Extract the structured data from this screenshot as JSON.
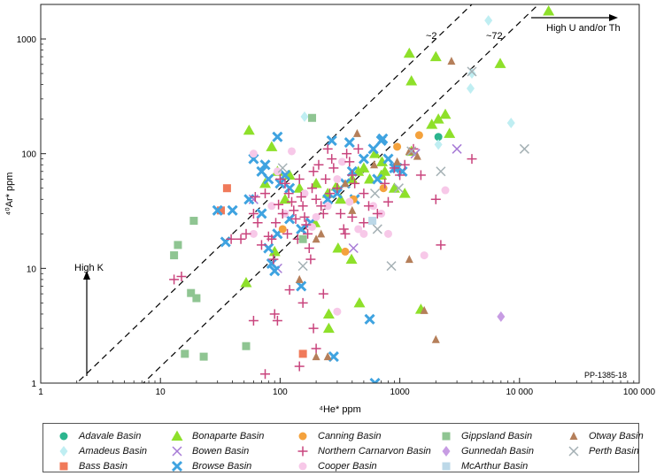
{
  "chart_data": {
    "type": "scatter",
    "x_scale": "log",
    "y_scale": "log",
    "xlim": [
      1,
      100000
    ],
    "ylim": [
      1,
      2000
    ],
    "xlabel": "⁴He* ppm",
    "ylabel": "⁴⁰Ar* ppm",
    "x_ticks": [
      {
        "value": 1,
        "label": "1"
      },
      {
        "value": 10,
        "label": "10"
      },
      {
        "value": 100,
        "label": "100"
      },
      {
        "value": 1000,
        "label": "1000"
      },
      {
        "value": 10000,
        "label": "10 000"
      },
      {
        "value": 100000,
        "label": "100 000"
      }
    ],
    "y_ticks": [
      {
        "value": 1,
        "label": "1"
      },
      {
        "value": 10,
        "label": "10"
      },
      {
        "value": 100,
        "label": "100"
      },
      {
        "value": 1000,
        "label": "1000"
      }
    ],
    "reference_lines": [
      {
        "label": "~2",
        "ratio": 0.5
      },
      {
        "label": "~72",
        "ratio": 0.139
      }
    ],
    "annotations": {
      "high_k": "High K",
      "high_u_th": "High U and/or Th",
      "figure_id": "PP-1385-18"
    },
    "legend_position": "bottom",
    "series": [
      {
        "name": "Adavale Basin",
        "marker": "circle",
        "color": "#2bb58e",
        "points": [
          [
            2100,
            140
          ]
        ]
      },
      {
        "name": "Amadeus Basin",
        "marker": "diamond",
        "color": "#bfeef2",
        "points": [
          [
            5500,
            1450
          ],
          [
            3900,
            370
          ],
          [
            8500,
            185
          ],
          [
            2100,
            120
          ],
          [
            160,
            210
          ],
          [
            4000,
            500
          ]
        ]
      },
      {
        "name": "Bass Basin",
        "marker": "square",
        "color": "#f07a5a",
        "points": [
          [
            36,
            50
          ],
          [
            32,
            32
          ],
          [
            155,
            1.8
          ]
        ]
      },
      {
        "name": "Bonaparte Basin",
        "marker": "triangle",
        "color": "#8ee02a",
        "points": [
          [
            17500,
            1750
          ],
          [
            1200,
            750
          ],
          [
            2000,
            700
          ],
          [
            6900,
            610
          ],
          [
            1250,
            430
          ],
          [
            2400,
            220
          ],
          [
            2100,
            200
          ],
          [
            1850,
            180
          ],
          [
            2600,
            150
          ],
          [
            55,
            160
          ],
          [
            85,
            115
          ],
          [
            95,
            70
          ],
          [
            120,
            65
          ],
          [
            145,
            50
          ],
          [
            200,
            55
          ],
          [
            250,
            45
          ],
          [
            295,
            52
          ],
          [
            320,
            40
          ],
          [
            400,
            60
          ],
          [
            450,
            70
          ],
          [
            500,
            75
          ],
          [
            560,
            60
          ],
          [
            620,
            100
          ],
          [
            710,
            85
          ],
          [
            750,
            70
          ],
          [
            900,
            50
          ],
          [
            1100,
            45
          ],
          [
            1250,
            105
          ],
          [
            75,
            55
          ],
          [
            110,
            40
          ],
          [
            195,
            25
          ],
          [
            305,
            15
          ],
          [
            395,
            12
          ],
          [
            460,
            5
          ],
          [
            255,
            4
          ],
          [
            255,
            3
          ],
          [
            52,
            7.5
          ],
          [
            90,
            14
          ],
          [
            1500,
            4.4
          ],
          [
            700,
            65
          ]
        ]
      },
      {
        "name": "Bowen Basin",
        "marker": "x",
        "color": "#a77bd6",
        "points": [
          [
            3000,
            110
          ],
          [
            1350,
            100
          ],
          [
            410,
            15
          ],
          [
            95,
            10
          ],
          [
            60,
            40
          ]
        ]
      },
      {
        "name": "Browse Basin",
        "marker": "asterisk",
        "color": "#3fa3e0",
        "points": [
          [
            95,
            140
          ],
          [
            60,
            90
          ],
          [
            75,
            80
          ],
          [
            70,
            70
          ],
          [
            80,
            60
          ],
          [
            100,
            55
          ],
          [
            110,
            65
          ],
          [
            120,
            50
          ],
          [
            30,
            32
          ],
          [
            40,
            32
          ],
          [
            55,
            40
          ],
          [
            70,
            30
          ],
          [
            120,
            27
          ],
          [
            150,
            22
          ],
          [
            180,
            25
          ],
          [
            250,
            40
          ],
          [
            300,
            45
          ],
          [
            350,
            55
          ],
          [
            400,
            70
          ],
          [
            500,
            90
          ],
          [
            600,
            110
          ],
          [
            700,
            130
          ],
          [
            800,
            90
          ],
          [
            900,
            75
          ],
          [
            950,
            75
          ],
          [
            1050,
            70
          ],
          [
            270,
            130
          ],
          [
            380,
            125
          ],
          [
            420,
            40
          ],
          [
            650,
            60
          ],
          [
            720,
            135
          ],
          [
            35,
            17
          ],
          [
            85,
            11
          ],
          [
            80,
            15
          ],
          [
            95,
            20
          ],
          [
            150,
            7
          ],
          [
            280,
            1.7
          ],
          [
            560,
            3.6
          ],
          [
            620,
            1.0
          ],
          [
            90,
            9.5
          ]
        ]
      },
      {
        "name": "Canning Basin",
        "marker": "circle",
        "color": "#f4a23d",
        "points": [
          [
            1450,
            145
          ],
          [
            950,
            115
          ],
          [
            410,
            40
          ],
          [
            350,
            14
          ],
          [
            105,
            22
          ],
          [
            730,
            50
          ]
        ]
      },
      {
        "name": "Cooper Basin",
        "marker": "circle",
        "color": "#f7c8e8",
        "points": [
          [
            60,
            100
          ],
          [
            95,
            70
          ],
          [
            125,
            105
          ],
          [
            85,
            35
          ],
          [
            60,
            20
          ],
          [
            110,
            30
          ],
          [
            160,
            45
          ],
          [
            200,
            28
          ],
          [
            250,
            35
          ],
          [
            300,
            60
          ],
          [
            330,
            85
          ],
          [
            380,
            38
          ],
          [
            450,
            22
          ],
          [
            500,
            20
          ],
          [
            600,
            35
          ],
          [
            700,
            30
          ],
          [
            800,
            20
          ],
          [
            2400,
            48
          ],
          [
            1600,
            13
          ],
          [
            300,
            4.2
          ],
          [
            185,
            23
          ]
        ]
      },
      {
        "name": "Northern Carnarvon Basin",
        "marker": "plus",
        "color": "#c9447d",
        "points": [
          [
            13,
            8
          ],
          [
            15,
            8.5
          ],
          [
            39,
            18
          ],
          [
            47,
            18
          ],
          [
            52,
            20
          ],
          [
            60,
            30
          ],
          [
            62,
            42
          ],
          [
            65,
            25
          ],
          [
            70,
            16
          ],
          [
            75,
            45
          ],
          [
            80,
            19
          ],
          [
            85,
            18
          ],
          [
            88,
            12
          ],
          [
            92,
            25
          ],
          [
            97,
            36
          ],
          [
            100,
            60
          ],
          [
            105,
            30
          ],
          [
            110,
            55
          ],
          [
            115,
            20
          ],
          [
            118,
            45
          ],
          [
            125,
            38
          ],
          [
            130,
            32
          ],
          [
            135,
            27
          ],
          [
            140,
            18
          ],
          [
            145,
            60
          ],
          [
            150,
            42
          ],
          [
            155,
            35
          ],
          [
            160,
            28
          ],
          [
            165,
            24
          ],
          [
            170,
            20
          ],
          [
            175,
            15
          ],
          [
            180,
            12
          ],
          [
            185,
            50
          ],
          [
            190,
            70
          ],
          [
            200,
            40
          ],
          [
            210,
            80
          ],
          [
            220,
            35
          ],
          [
            230,
            30
          ],
          [
            240,
            60
          ],
          [
            250,
            110
          ],
          [
            260,
            45
          ],
          [
            270,
            90
          ],
          [
            280,
            75
          ],
          [
            300,
            50
          ],
          [
            320,
            30
          ],
          [
            340,
            22
          ],
          [
            360,
            100
          ],
          [
            380,
            85
          ],
          [
            400,
            65
          ],
          [
            420,
            55
          ],
          [
            450,
            110
          ],
          [
            500,
            45
          ],
          [
            550,
            35
          ],
          [
            650,
            30
          ],
          [
            750,
            55
          ],
          [
            800,
            38
          ],
          [
            900,
            75
          ],
          [
            1000,
            65
          ],
          [
            1100,
            80
          ],
          [
            1300,
            110
          ],
          [
            1500,
            65
          ],
          [
            2000,
            40
          ],
          [
            2200,
            16
          ],
          [
            4000,
            90
          ],
          [
            90,
            4
          ],
          [
            95,
            3.5
          ],
          [
            120,
            6.5
          ],
          [
            155,
            5
          ],
          [
            190,
            3
          ],
          [
            200,
            2
          ],
          [
            230,
            6
          ],
          [
            60,
            3.5
          ],
          [
            75,
            1.2
          ],
          [
            145,
            1.4
          ],
          [
            400,
            28
          ],
          [
            500,
            25
          ],
          [
            350,
            20
          ]
        ]
      },
      {
        "name": "Gippsland Basin",
        "marker": "square",
        "color": "#8fc592",
        "points": [
          [
            18,
            6.1
          ],
          [
            20,
            5.5
          ],
          [
            13,
            13
          ],
          [
            14,
            16
          ],
          [
            19,
            26
          ],
          [
            16,
            1.8
          ],
          [
            23,
            1.7
          ],
          [
            52,
            2.1
          ],
          [
            185,
            205
          ],
          [
            155,
            18
          ]
        ]
      },
      {
        "name": "Gunnedah Basin",
        "marker": "diamond",
        "color": "#c79ce3",
        "points": [
          [
            7000,
            3.8
          ]
        ]
      },
      {
        "name": "McArthur Basin",
        "marker": "square",
        "color": "#bcd8e8",
        "points": [
          [
            590,
            26
          ]
        ]
      },
      {
        "name": "Otway Basin",
        "marker": "triangle-small",
        "color": "#b57f5a",
        "points": [
          [
            2700,
            640
          ],
          [
            1200,
            105
          ],
          [
            1400,
            95
          ],
          [
            950,
            85
          ],
          [
            610,
            80
          ],
          [
            440,
            150
          ],
          [
            220,
            20
          ],
          [
            200,
            18
          ],
          [
            145,
            8
          ],
          [
            250,
            1.7
          ],
          [
            200,
            1.7
          ],
          [
            1200,
            12
          ],
          [
            1600,
            4.3
          ],
          [
            2000,
            2.4
          ],
          [
            350,
            55
          ],
          [
            400,
            32
          ]
        ]
      },
      {
        "name": "Perth Basin",
        "marker": "x",
        "color": "#a4b0b4",
        "points": [
          [
            11000,
            110
          ],
          [
            4000,
            520
          ],
          [
            2200,
            70
          ],
          [
            980,
            50
          ],
          [
            850,
            10.5
          ],
          [
            1250,
            105
          ],
          [
            650,
            22
          ],
          [
            155,
            10.5
          ],
          [
            105,
            75
          ],
          [
            620,
            45
          ]
        ]
      }
    ]
  },
  "legend": {
    "items": [
      {
        "label": "Adavale Basin",
        "marker": "circle",
        "color": "#2bb58e"
      },
      {
        "label": "Amadeus Basin",
        "marker": "diamond",
        "color": "#bfeef2"
      },
      {
        "label": "Bass Basin",
        "marker": "square",
        "color": "#f07a5a"
      },
      {
        "label": "Bonaparte Basin",
        "marker": "triangle",
        "color": "#8ee02a"
      },
      {
        "label": "Bowen Basin",
        "marker": "x",
        "color": "#a77bd6"
      },
      {
        "label": "Browse Basin",
        "marker": "asterisk",
        "color": "#3fa3e0"
      },
      {
        "label": "Canning Basin",
        "marker": "circle",
        "color": "#f4a23d"
      },
      {
        "label": "Northern Carnarvon Basin",
        "marker": "plus",
        "color": "#c9447d"
      },
      {
        "label": "Cooper Basin",
        "marker": "circle",
        "color": "#f7c8e8"
      },
      {
        "label": "Gippsland Basin",
        "marker": "square",
        "color": "#8fc592"
      },
      {
        "label": "Gunnedah Basin",
        "marker": "diamond",
        "color": "#c79ce3"
      },
      {
        "label": "McArthur Basin",
        "marker": "square",
        "color": "#bcd8e8"
      },
      {
        "label": "Otway Basin",
        "marker": "triangle-small",
        "color": "#b57f5a"
      },
      {
        "label": "Perth Basin",
        "marker": "x",
        "color": "#a4b0b4"
      }
    ]
  }
}
